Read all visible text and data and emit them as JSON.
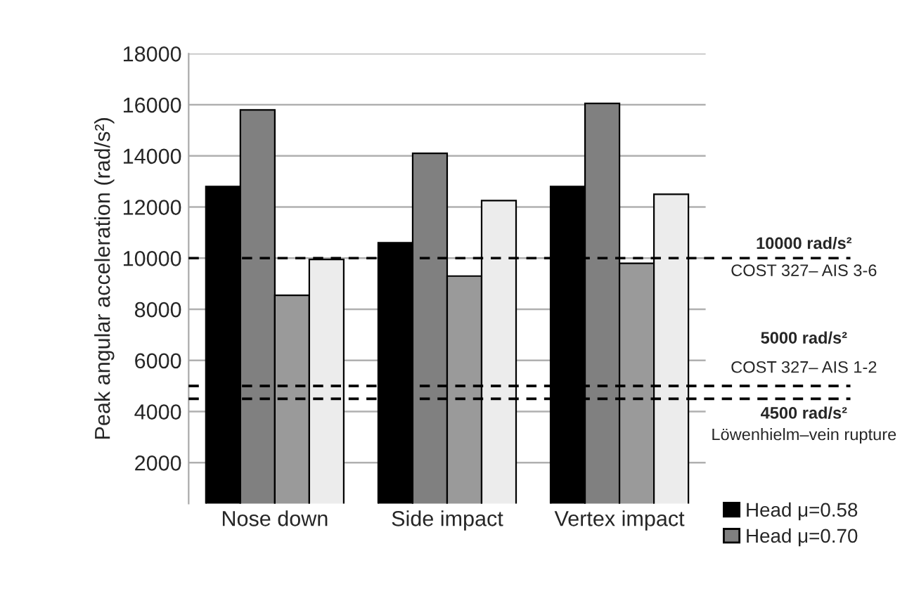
{
  "chart_data": {
    "type": "bar",
    "ylabel": "Peak angular acceleration (rad/s²)",
    "categories": [
      "Nose down",
      "Side impact",
      "Vertex impact"
    ],
    "series": [
      {
        "name": "Head μ=0.58",
        "color": "#000000",
        "values": [
          12800,
          10600,
          12800
        ]
      },
      {
        "name": "Head μ=0.70",
        "color": "#808080",
        "values": [
          15800,
          14100,
          16050
        ]
      },
      {
        "color": "#9a9a9a",
        "values": [
          8550,
          9300,
          9800
        ]
      },
      {
        "color": "#ececec",
        "values": [
          9950,
          12250,
          12500
        ]
      }
    ],
    "ylim": [
      400,
      18000
    ],
    "yticks": [
      2000,
      4000,
      6000,
      8000,
      10000,
      12000,
      14000,
      16000,
      18000
    ],
    "grid": "y",
    "legend": "bottom right",
    "ref_lines": [
      {
        "axis": "y",
        "value": 10000,
        "label": "10000 rad/s²\nCOST 327– AIS 3-6",
        "line_style": "dashed",
        "color": "#000000"
      },
      {
        "axis": "y",
        "value": 5000,
        "label": "5000 rad/s²\nCOST 327– AIS 1-2",
        "line_style": "dashed",
        "color": "#000000"
      },
      {
        "axis": "y",
        "value": 4500,
        "label": "4500 rad/s²\nLöwenhielm–vein rupture",
        "line_style": "dashed",
        "color": "#000000"
      }
    ]
  }
}
